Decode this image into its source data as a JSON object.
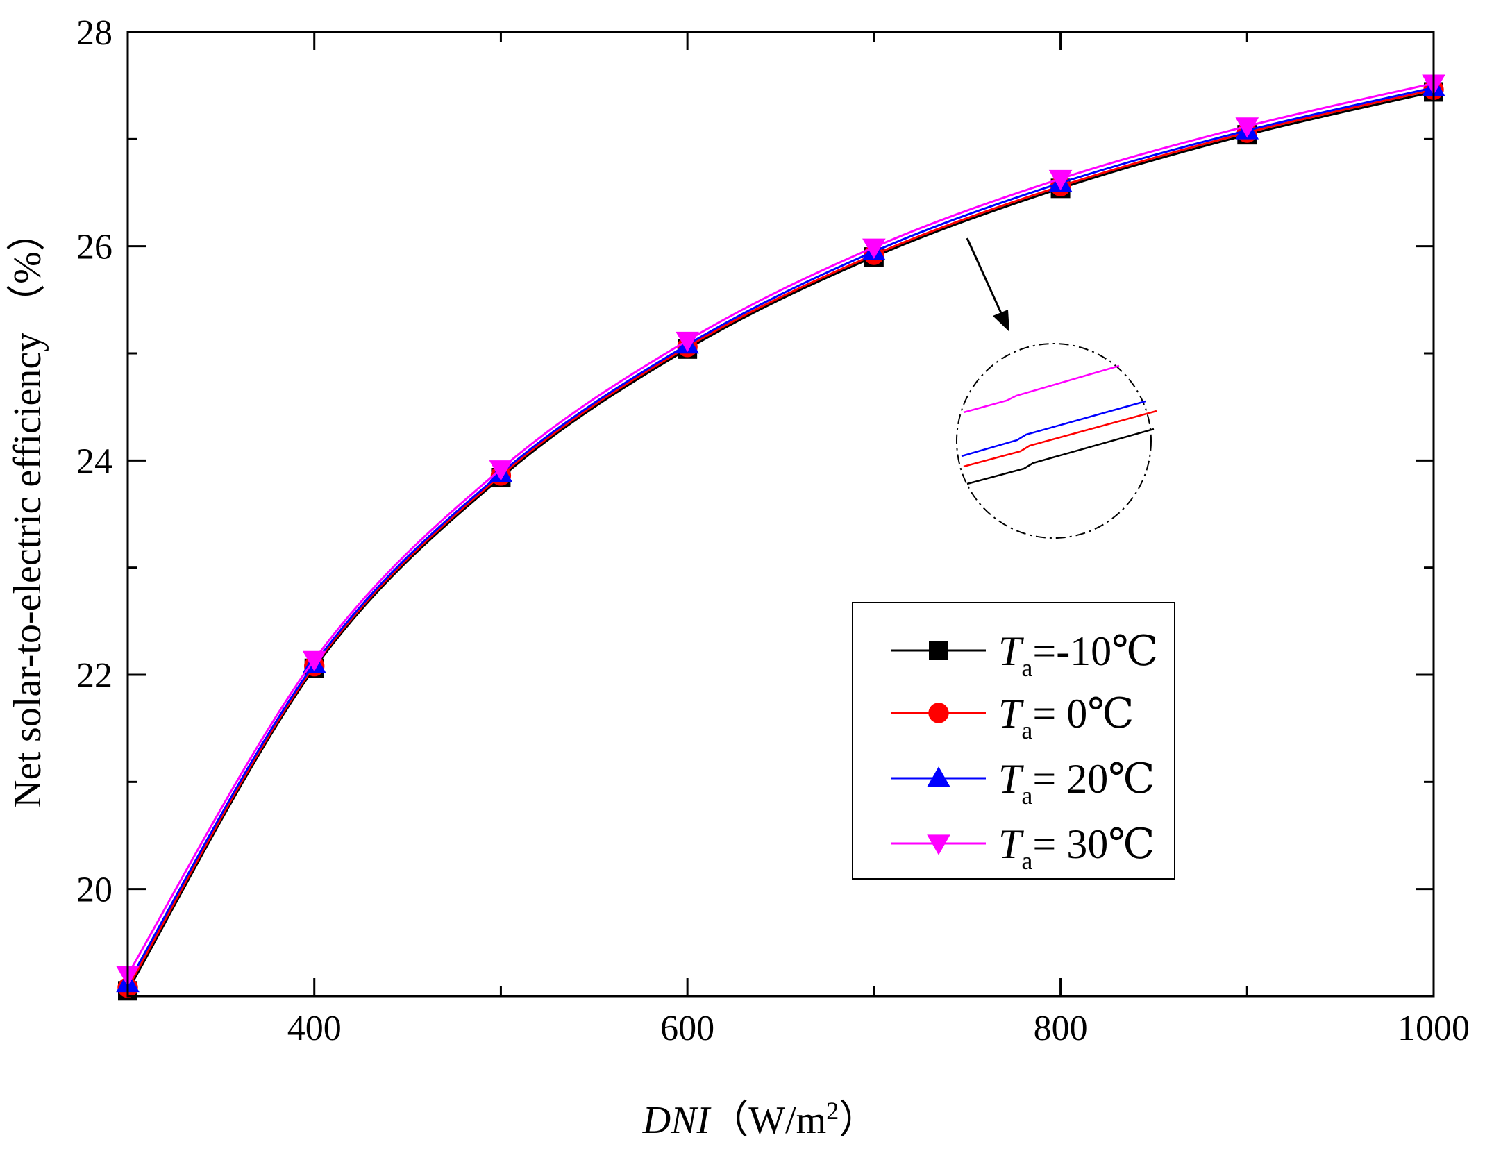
{
  "chart_data": {
    "type": "line",
    "title": "",
    "xlabel": {
      "italic": "DNI",
      "unit_prefix": "（W/m",
      "unit_sup": "2",
      "unit_suffix": "）"
    },
    "ylabel": "Net solar-to-electric efficiency （%）",
    "xlim": [
      300,
      1000
    ],
    "ylim": [
      19,
      28
    ],
    "x_ticks": [
      400,
      600,
      800,
      1000
    ],
    "y_ticks": [
      20,
      22,
      24,
      26,
      28
    ],
    "x_tick_labels": [
      "400",
      "600",
      "800",
      "1000"
    ],
    "y_tick_labels": [
      "20",
      "22",
      "24",
      "26",
      "28"
    ],
    "x": [
      300,
      400,
      500,
      600,
      700,
      800,
      900,
      1000
    ],
    "series": [
      {
        "name": "T_a=-10℃",
        "legend_var": "T",
        "legend_sub": "a",
        "legend_value": "=-10℃",
        "color": "#000000",
        "marker": "square",
        "values": [
          19.05,
          22.06,
          23.84,
          25.04,
          25.9,
          26.54,
          27.04,
          27.44
        ]
      },
      {
        "name": "T_a= 0℃",
        "legend_var": "T",
        "legend_sub": "a",
        "legend_value": "=   0℃",
        "color": "#ff0000",
        "marker": "circle",
        "values": [
          19.08,
          22.08,
          23.86,
          25.06,
          25.92,
          26.56,
          27.06,
          27.46
        ]
      },
      {
        "name": "T_a= 20℃",
        "legend_var": "T",
        "legend_sub": "a",
        "legend_value": "= 20℃",
        "color": "#0000ff",
        "marker": "triangle-up",
        "values": [
          19.12,
          22.1,
          23.88,
          25.08,
          25.95,
          26.59,
          27.08,
          27.48
        ]
      },
      {
        "name": "T_a= 30℃",
        "legend_var": "T",
        "legend_sub": "a",
        "legend_value": "= 30℃",
        "color": "#ff00ff",
        "marker": "triangle-down",
        "values": [
          19.2,
          22.14,
          23.92,
          25.12,
          25.99,
          26.63,
          27.12,
          27.52
        ]
      }
    ],
    "legend_position": "lower-right",
    "annotation": "zoom inset (magnified view near DNI ≈ 750)"
  }
}
